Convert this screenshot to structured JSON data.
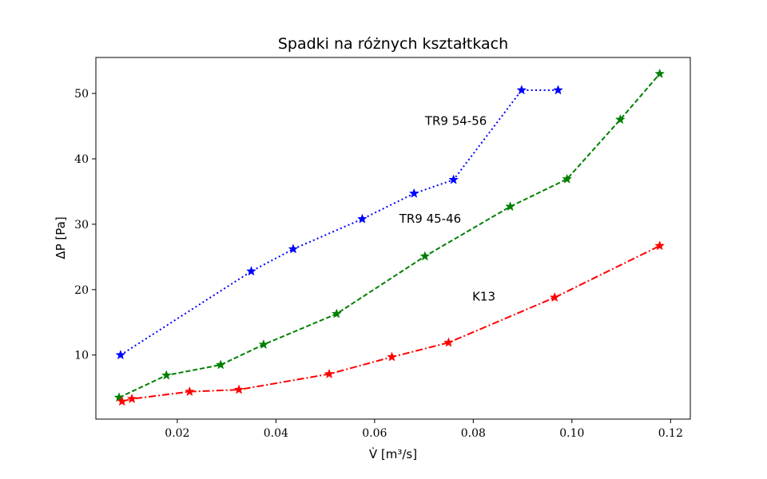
{
  "chart_data": {
    "type": "line",
    "title": "Spadki na różnych kształtkach",
    "xlabel": "V̇ [m³/s]",
    "ylabel": "ΔP [Pa]",
    "xlim": [
      0.0035,
      0.124
    ],
    "ylim": [
      0.2,
      55.5
    ],
    "xticks": [
      0.02,
      0.04,
      0.06,
      0.08,
      0.1,
      0.12
    ],
    "xtick_labels": [
      "0.02",
      "0.04",
      "0.06",
      "0.08",
      "0.10",
      "0.12"
    ],
    "yticks": [
      10,
      20,
      30,
      40,
      50
    ],
    "ytick_labels": [
      "10",
      "20",
      "30",
      "40",
      "50"
    ],
    "grid": false,
    "series": [
      {
        "name": "TR9 54-56",
        "color": "#0000ff",
        "line_style": "dotted",
        "marker": "star",
        "x": [
          0.0085,
          0.035,
          0.0435,
          0.0575,
          0.068,
          0.076,
          0.0898,
          0.0972
        ],
        "y": [
          10.0,
          22.8,
          26.2,
          30.8,
          34.7,
          36.8,
          50.5,
          50.5
        ]
      },
      {
        "name": "TR9 45-46",
        "color": "#008000",
        "line_style": "dashed",
        "marker": "star",
        "x": [
          0.0082,
          0.0178,
          0.0288,
          0.0375,
          0.0523,
          0.0702,
          0.0875,
          0.099,
          0.1098,
          0.1178
        ],
        "y": [
          3.5,
          6.9,
          8.5,
          11.6,
          16.3,
          25.1,
          32.7,
          36.9,
          46.0,
          53.0
        ]
      },
      {
        "name": "K13",
        "color": "#ff0000",
        "line_style": "dashdot",
        "marker": "star",
        "x": [
          0.0088,
          0.0108,
          0.0225,
          0.0325,
          0.0508,
          0.0635,
          0.075,
          0.0965,
          0.1178
        ],
        "y": [
          2.9,
          3.3,
          4.4,
          4.7,
          7.1,
          9.7,
          11.9,
          18.8,
          26.7
        ]
      }
    ],
    "annotations": [
      {
        "text": "TR9 54-56",
        "x": 0.0702,
        "y": 45.2
      },
      {
        "text": "TR9 45-46",
        "x": 0.065,
        "y": 30.2
      },
      {
        "text": "K13",
        "x": 0.0798,
        "y": 18.3
      }
    ]
  }
}
